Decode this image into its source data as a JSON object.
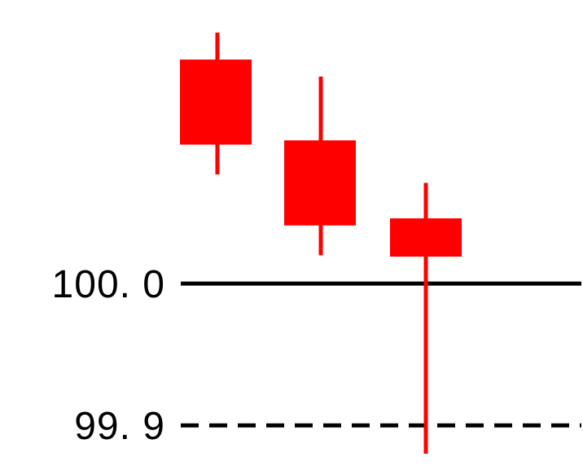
{
  "chart_data": {
    "type": "candlestick",
    "title": "",
    "xlabel": "",
    "ylabel": "",
    "ylim": [
      99.88,
      100.2
    ],
    "y_tick_labels": [
      {
        "value": 100.0,
        "label": "100. 0",
        "style": "solid"
      },
      {
        "value": 99.9,
        "label": "99. 9",
        "style": "dashed"
      }
    ],
    "candles": [
      {
        "open": 100.158,
        "close": 100.098,
        "high": 100.177,
        "low": 100.077
      },
      {
        "open": 100.101,
        "close": 100.041,
        "high": 100.146,
        "low": 100.02
      },
      {
        "open": 100.046,
        "close": 100.019,
        "high": 100.071,
        "low": 99.88
      }
    ],
    "colors": {
      "candle": "#ff0000",
      "reference_line": "#000000",
      "background": "#ffffff"
    }
  }
}
